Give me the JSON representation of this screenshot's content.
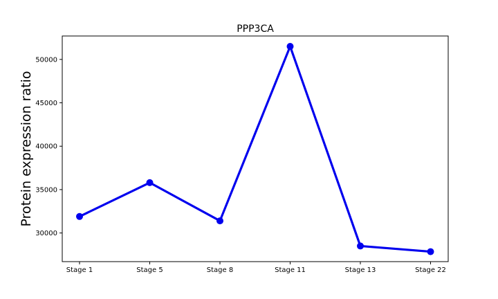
{
  "chart_data": {
    "type": "line",
    "title": "PPP3CA",
    "xlabel": "",
    "ylabel": "Protein expression ratio",
    "categories": [
      "Stage 1",
      "Stage 5",
      "Stage 8",
      "Stage 11",
      "Stage 13",
      "Stage 22"
    ],
    "series": [
      {
        "values": [
          31900,
          35800,
          31400,
          51500,
          28500,
          27850
        ],
        "color": "#0000ee"
      }
    ],
    "ylim": [
      26700,
      52700
    ],
    "yticks": [
      30000,
      35000,
      40000,
      45000,
      50000
    ],
    "ytick_labels": [
      "30000",
      "35000",
      "40000",
      "45000",
      "50000"
    ],
    "grid": false,
    "legend": "none",
    "marker": "circle"
  }
}
